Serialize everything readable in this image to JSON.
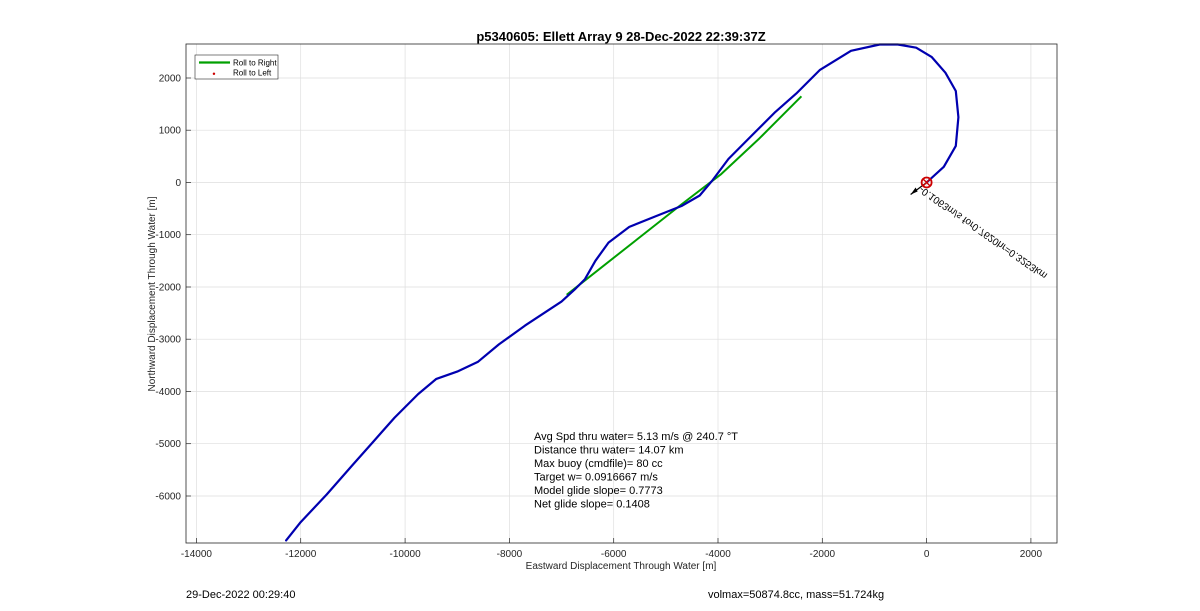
{
  "chart_data": {
    "type": "line",
    "title": "p5340605: Ellett Array 9 28-Dec-2022 22:39:37Z",
    "xlabel": "Eastward Displacement Through Water [m]",
    "ylabel": "Northward Displacement Through Water [m]",
    "xlim": [
      -14200,
      2500
    ],
    "ylim": [
      -6900,
      2650
    ],
    "xticks": [
      -14000,
      -12000,
      -10000,
      -8000,
      -6000,
      -4000,
      -2000,
      0,
      2000
    ],
    "yticks": [
      -6000,
      -5000,
      -4000,
      -3000,
      -2000,
      -1000,
      0,
      1000,
      2000
    ],
    "grid": true,
    "legend_position": "top-left",
    "series": [
      {
        "name": "Roll to Right",
        "color": "#00a000",
        "x": [
          -6900,
          -4700,
          -3950,
          -3200,
          -2400
        ],
        "y": [
          -2150,
          -420,
          150,
          850,
          1650
        ]
      },
      {
        "name": "Roll to Left",
        "color": "#cc0000",
        "x": [],
        "y": []
      }
    ],
    "track": {
      "color": "#0000b0",
      "x": [
        0,
        330,
        560,
        610,
        560,
        360,
        100,
        -200,
        -550,
        -900,
        -1450,
        -2050,
        -2500,
        -2900,
        -3350,
        -3800,
        -4100,
        -4350,
        -4700,
        -5200,
        -5700,
        -6100,
        -6350,
        -6550,
        -6750,
        -7000,
        -7700,
        -8200,
        -8600,
        -9000,
        -9400,
        -9750,
        -10200,
        -10600,
        -11000,
        -11500,
        -12000,
        -12280
      ],
      "y": [
        0,
        300,
        700,
        1250,
        1750,
        2100,
        2400,
        2580,
        2640,
        2640,
        2520,
        2150,
        1700,
        1350,
        900,
        450,
        50,
        -250,
        -450,
        -650,
        -850,
        -1150,
        -1500,
        -1850,
        -2050,
        -2280,
        -2740,
        -3100,
        -3430,
        -3620,
        -3760,
        -4050,
        -4500,
        -4950,
        -5400,
        -5970,
        -6500,
        -6850
      ]
    },
    "start_marker": {
      "x": 0,
      "y": 0,
      "color": "#cc0000"
    },
    "current_label": "-0.1063m/s for0.7620hr=0.3253km",
    "stats": [
      "Avg Spd thru water=  5.13 m/s @ 240.7 °T",
      "Distance thru water= 14.07 km",
      "Max buoy (cmdfile)= 80 cc",
      "Target w= 0.0916667 m/s",
      "Model glide slope= 0.7773",
      "Net glide slope= 0.1408"
    ]
  },
  "footer": {
    "timestamp": "29-Dec-2022 00:29:40",
    "mass_info": "volmax=50874.8cc, mass=51.724kg"
  }
}
